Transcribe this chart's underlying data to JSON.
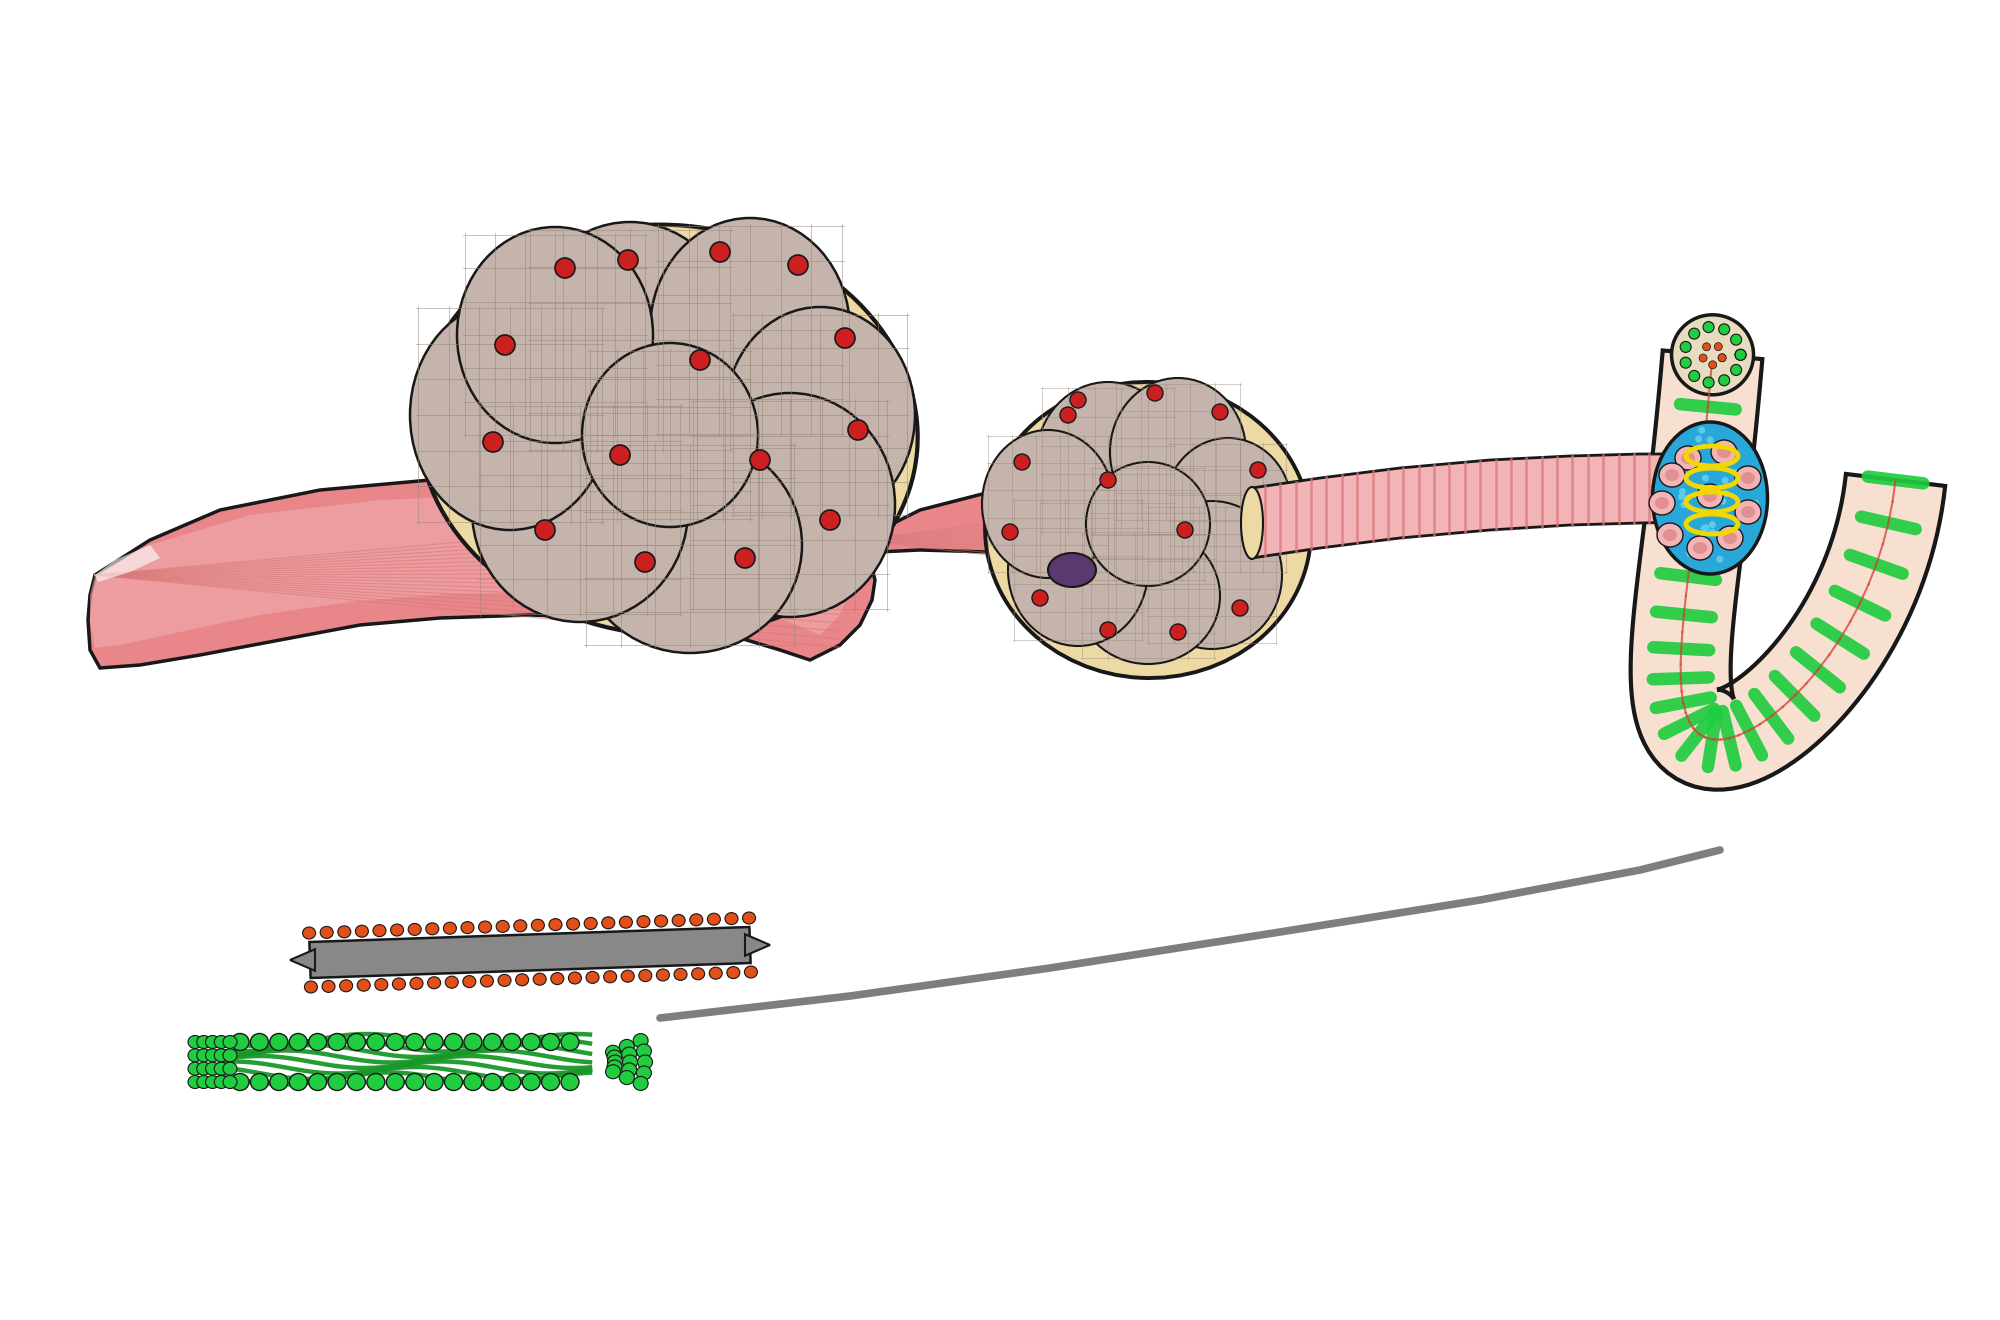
{
  "bg_color": "#ffffff",
  "muscle_pink": "#E8868A",
  "muscle_pink_light": "#F2B4B6",
  "muscle_pink_mid": "#D97070",
  "muscle_pink_dark": "#C06070",
  "fascicle_tan": "#EDD9A3",
  "fascicle_tan_dark": "#C8A96E",
  "fascicle_border": "#B89860",
  "fiber_gray": "#C4B4AC",
  "fiber_net": "#A89888",
  "red_dot": "#CC2020",
  "purple_blob": "#5A3870",
  "blue_color": "#28A8D8",
  "blue_light": "#60C8E8",
  "yellow_color": "#F0D800",
  "green_bright": "#20CC40",
  "green_dark": "#189828",
  "green_mid": "#22B030",
  "orange_dot": "#E05018",
  "gray_dark": "#606060",
  "gray_mid": "#888888",
  "gray_light": "#AAAAAA",
  "peach_color": "#F0C8A8",
  "peach_light": "#F8E0D0",
  "outline_color": "#181818",
  "stripe_pink": "#D87878",
  "stripe_pink2": "#C06868",
  "white_sheen": "#FFFFFF",
  "tan_light": "#F5EAC8"
}
